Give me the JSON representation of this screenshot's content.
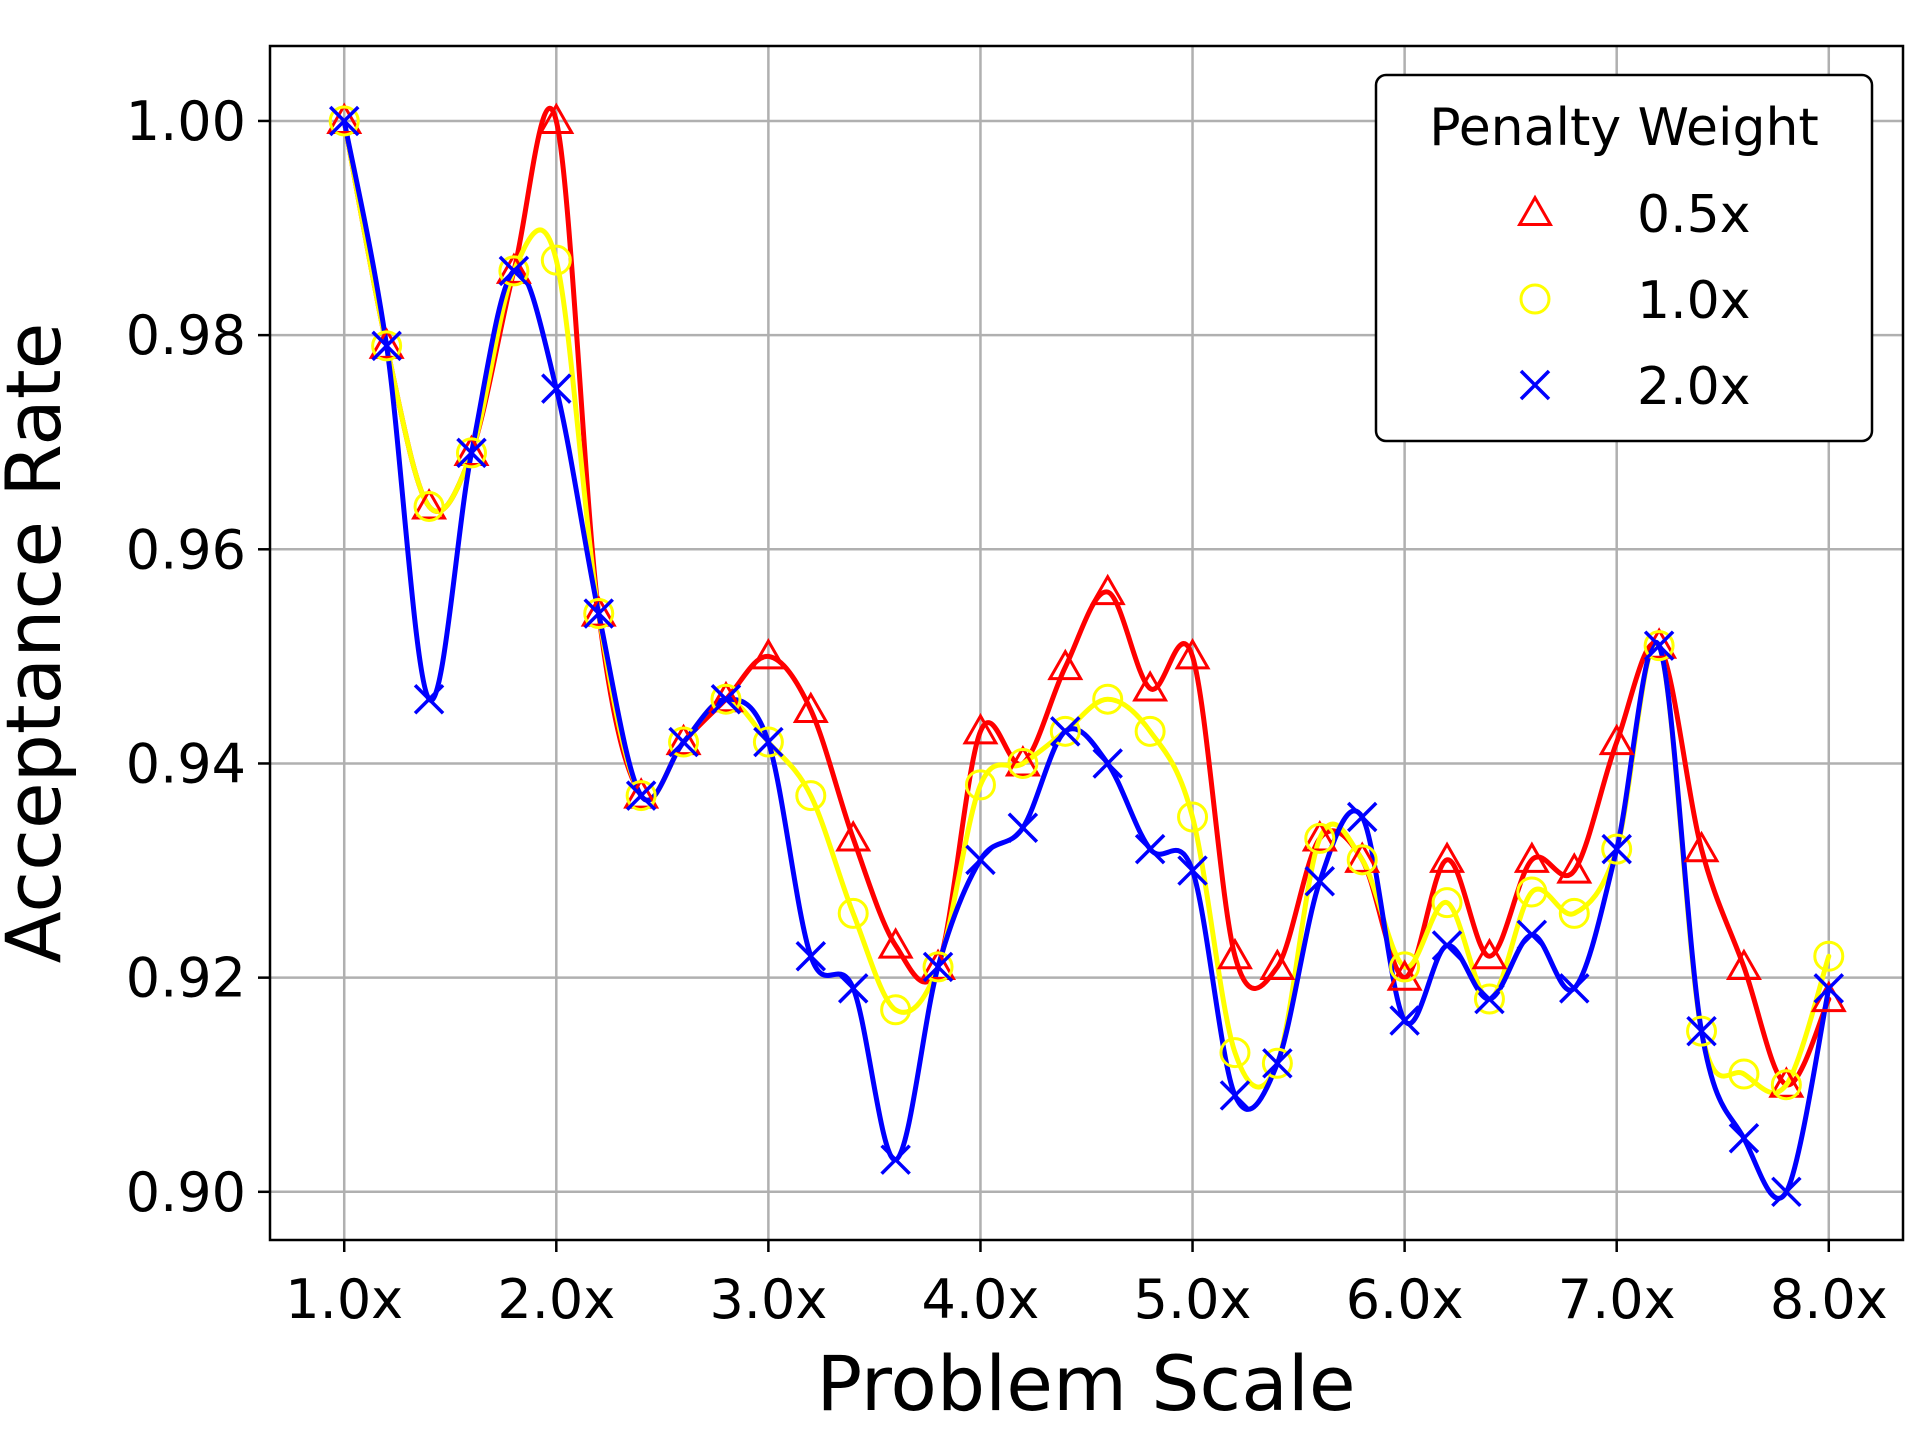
{
  "chart_data": {
    "type": "line",
    "xlabel": "Problem Scale",
    "ylabel": "Acceptance Rate",
    "x_ticks": [
      1,
      2,
      3,
      4,
      5,
      6,
      7,
      8
    ],
    "x_tick_labels": [
      "1.0x",
      "2.0x",
      "3.0x",
      "4.0x",
      "5.0x",
      "6.0x",
      "7.0x",
      "8.0x"
    ],
    "y_ticks": [
      0.9,
      0.92,
      0.94,
      0.96,
      0.98,
      1.0
    ],
    "y_tick_labels": [
      "0.90",
      "0.92",
      "0.94",
      "0.96",
      "0.98",
      "1.00"
    ],
    "xlim": [
      0.65,
      8.35
    ],
    "ylim": [
      0.8955,
      1.007
    ],
    "grid": true,
    "legend": {
      "title": "Penalty Weight",
      "placement": "top-right"
    },
    "x": [
      1.0,
      1.2,
      1.4,
      1.6,
      1.8,
      2.0,
      2.2,
      2.4,
      2.6,
      2.8,
      3.0,
      3.2,
      3.4,
      3.6,
      3.8,
      4.0,
      4.2,
      4.4,
      4.6,
      4.8,
      5.0,
      5.2,
      5.4,
      5.6,
      5.8,
      6.0,
      6.2,
      6.4,
      6.6,
      6.8,
      7.0,
      7.2,
      7.4,
      7.6,
      7.8,
      8.0
    ],
    "series": [
      {
        "name": "0.5x",
        "color": "#ff0000",
        "marker": "triangle",
        "values": [
          1.0,
          0.979,
          0.964,
          0.969,
          0.986,
          1.0,
          0.954,
          0.937,
          0.942,
          0.946,
          0.95,
          0.945,
          0.933,
          0.923,
          0.921,
          0.943,
          0.94,
          0.949,
          0.956,
          0.947,
          0.95,
          0.922,
          0.921,
          0.933,
          0.931,
          0.92,
          0.931,
          0.922,
          0.931,
          0.93,
          0.942,
          0.951,
          0.932,
          0.921,
          0.91,
          0.918
        ]
      },
      {
        "name": "1.0x",
        "color": "#ffff00",
        "marker": "circle",
        "values": [
          1.0,
          0.979,
          0.964,
          0.969,
          0.986,
          0.987,
          0.954,
          0.937,
          0.942,
          0.946,
          0.942,
          0.937,
          0.926,
          0.917,
          0.921,
          0.938,
          0.94,
          0.943,
          0.946,
          0.943,
          0.935,
          0.913,
          0.912,
          0.933,
          0.931,
          0.921,
          0.927,
          0.918,
          0.928,
          0.926,
          0.932,
          0.951,
          0.915,
          0.911,
          0.91,
          0.922
        ]
      },
      {
        "name": "2.0x",
        "color": "#0000ff",
        "marker": "x",
        "values": [
          1.0,
          0.979,
          0.946,
          0.969,
          0.986,
          0.975,
          0.954,
          0.937,
          0.942,
          0.946,
          0.942,
          0.922,
          0.919,
          0.903,
          0.921,
          0.931,
          0.934,
          0.943,
          0.94,
          0.932,
          0.93,
          0.909,
          0.912,
          0.929,
          0.935,
          0.916,
          0.923,
          0.918,
          0.924,
          0.919,
          0.932,
          0.951,
          0.915,
          0.905,
          0.9,
          0.919
        ]
      }
    ]
  }
}
